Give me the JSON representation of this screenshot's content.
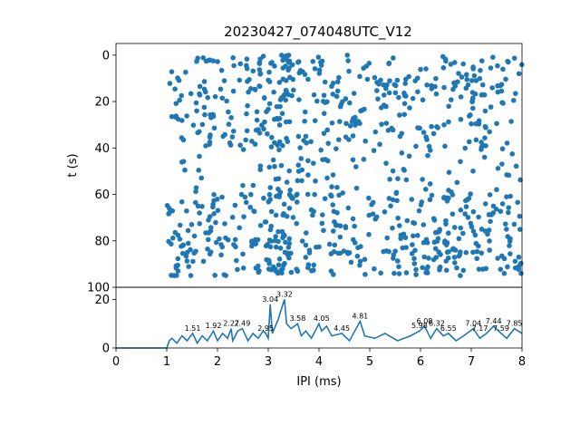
{
  "figure": {
    "title": "20230427_074048UTC_V12"
  },
  "chart_data": [
    {
      "type": "scatter",
      "title": "20230427_074048UTC_V12",
      "xlabel": "",
      "ylabel": "t (s)",
      "xlim": [
        0,
        8
      ],
      "ylim": [
        100,
        -5
      ],
      "y_inverted": true,
      "grid": false,
      "yticks": [
        0,
        20,
        40,
        60,
        80,
        100
      ],
      "color": "#1f77b4",
      "points": "generated_from_visual_density: 1.0 to 8.0 ms IPI, 0 to 95 s, denser near 3.0-3.4 ms",
      "marker": "circle"
    },
    {
      "type": "line",
      "xlabel": "IPI (ms)",
      "ylabel": "",
      "xlim": [
        0,
        8
      ],
      "ylim": [
        0,
        25
      ],
      "xticks": [
        0,
        1,
        2,
        3,
        4,
        5,
        6,
        7,
        8
      ],
      "yticks": [
        0,
        20
      ],
      "color": "#1f77b4",
      "series": [
        {
          "x": [
            0.0,
            0.9,
            1.0,
            1.05,
            1.1,
            1.2,
            1.3,
            1.4,
            1.51,
            1.6,
            1.7,
            1.8,
            1.92,
            2.0,
            2.1,
            2.2,
            2.27,
            2.3,
            2.4,
            2.49,
            2.6,
            2.7,
            2.8,
            2.9,
            2.95,
            3.0,
            3.04,
            3.08,
            3.2,
            3.32,
            3.36,
            3.45,
            3.58,
            3.65,
            3.74,
            3.85,
            4.0,
            4.05,
            4.15,
            4.25,
            4.45,
            4.6,
            4.81,
            4.9,
            5.1,
            5.3,
            5.55,
            5.8,
            5.98,
            6.08,
            6.2,
            6.32,
            6.45,
            6.55,
            6.7,
            6.85,
            7.04,
            7.17,
            7.3,
            7.44,
            7.59,
            7.7,
            7.85,
            8.0
          ],
          "values": [
            0,
            0,
            0,
            3,
            4,
            2,
            5,
            3,
            6,
            2,
            5,
            3,
            7,
            3,
            6,
            4,
            8,
            3,
            7,
            8,
            3,
            6,
            4,
            7,
            6,
            4,
            18,
            6,
            12,
            20,
            10,
            8,
            10,
            5,
            7,
            4,
            10,
            7,
            9,
            5,
            6,
            3,
            11,
            5,
            4,
            6,
            3,
            5,
            7,
            9,
            4,
            8,
            5,
            6,
            3,
            5,
            8,
            4,
            6,
            9,
            6,
            4,
            8,
            6
          ]
        }
      ],
      "annotations": [
        {
          "label": "1.51",
          "x": 1.51,
          "y": 6
        },
        {
          "label": "1.92",
          "x": 1.92,
          "y": 7
        },
        {
          "label": "2.27",
          "x": 2.27,
          "y": 8
        },
        {
          "label": "2.49",
          "x": 2.49,
          "y": 8
        },
        {
          "label": "2.95",
          "x": 2.95,
          "y": 6
        },
        {
          "label": "3.04",
          "x": 3.04,
          "y": 18
        },
        {
          "label": "3.32",
          "x": 3.32,
          "y": 20
        },
        {
          "label": "3.58",
          "x": 3.58,
          "y": 10
        },
        {
          "label": "4.05",
          "x": 4.05,
          "y": 10
        },
        {
          "label": "4.45",
          "x": 4.45,
          "y": 6
        },
        {
          "label": "4.81",
          "x": 4.81,
          "y": 11
        },
        {
          "label": "5.98",
          "x": 5.98,
          "y": 7
        },
        {
          "label": "6.08",
          "x": 6.08,
          "y": 9
        },
        {
          "label": "6.32",
          "x": 6.32,
          "y": 8
        },
        {
          "label": "6.55",
          "x": 6.55,
          "y": 6
        },
        {
          "label": "7.04",
          "x": 7.04,
          "y": 8
        },
        {
          "label": "7.17",
          "x": 7.17,
          "y": 6
        },
        {
          "label": "7.44",
          "x": 7.44,
          "y": 9
        },
        {
          "label": "7.59",
          "x": 7.59,
          "y": 6
        },
        {
          "label": "7.85",
          "x": 7.85,
          "y": 8
        }
      ]
    }
  ]
}
